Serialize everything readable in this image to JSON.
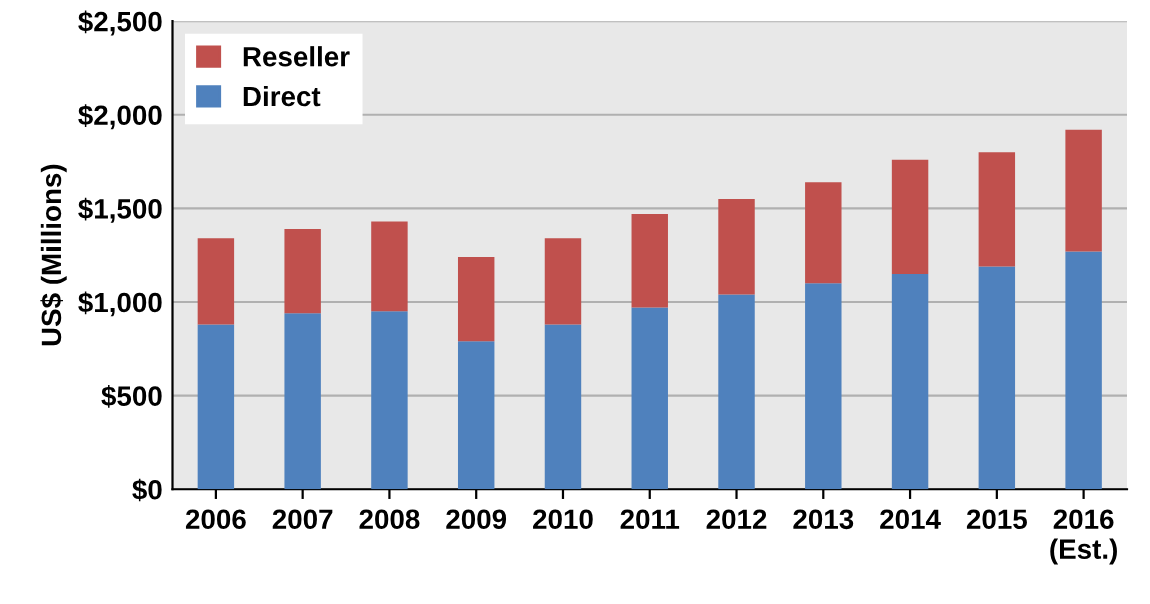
{
  "chart_data": {
    "type": "bar",
    "stacked": true,
    "ylabel": "US$ (Millions)",
    "categories": [
      "2006",
      "2007",
      "2008",
      "2009",
      "2010",
      "2011",
      "2012",
      "2013",
      "2014",
      "2015",
      "2016\n(Est.)"
    ],
    "series": [
      {
        "name": "Direct",
        "color": "#4f81bd",
        "values": [
          880,
          940,
          950,
          790,
          880,
          970,
          1040,
          1100,
          1150,
          1190,
          1270
        ]
      },
      {
        "name": "Reseller",
        "color": "#c0504d",
        "values": [
          460,
          450,
          480,
          450,
          460,
          500,
          510,
          540,
          610,
          610,
          650
        ]
      }
    ],
    "ylim": [
      0,
      2500
    ],
    "yticks": [
      {
        "value": 0,
        "label": "$0"
      },
      {
        "value": 500,
        "label": "$500"
      },
      {
        "value": 1000,
        "label": "$1,000"
      },
      {
        "value": 1500,
        "label": "$1,500"
      },
      {
        "value": 2000,
        "label": "$2,000"
      },
      {
        "value": 2500,
        "label": "$2,500"
      }
    ],
    "grid": "y",
    "legend": "top left"
  }
}
